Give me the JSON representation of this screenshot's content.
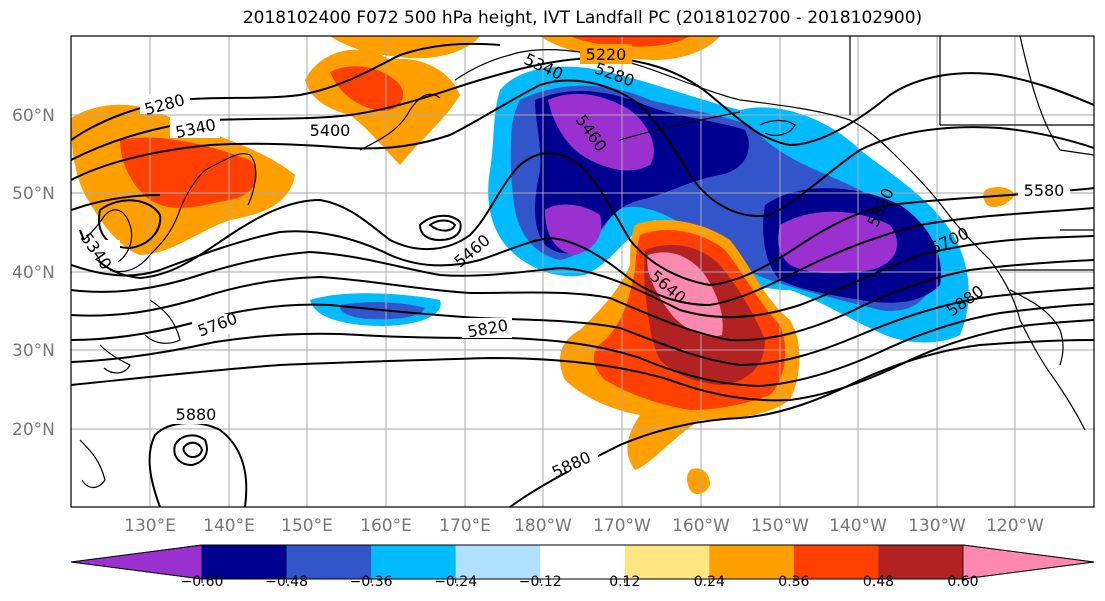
{
  "title": "2018102400 F072 500 hPa height, IVT Landfall PC (2018102700 - 2018102900)",
  "map": {
    "lat_labels": [
      "60°N",
      "50°N",
      "40°N",
      "30°N",
      "20°N"
    ],
    "lon_labels": [
      "130°E",
      "140°E",
      "150°E",
      "160°E",
      "170°E",
      "180°W",
      "170°W",
      "160°W",
      "150°W",
      "140°W",
      "130°W",
      "120°W"
    ],
    "contour_labels": [
      "5220",
      "5280",
      "5340",
      "5280",
      "5340",
      "5400",
      "5460",
      "5340",
      "5460",
      "5520",
      "5580",
      "5640",
      "5700",
      "5760",
      "5820",
      "5880",
      "5880",
      "5880"
    ],
    "colors": {
      "purple": "#9b30d0",
      "navy": "#000090",
      "royal": "#3355cc",
      "sky": "#00bbff",
      "pale_blue": "#b0e0ff",
      "yellow": "#ffe680",
      "orange": "#ffa000",
      "red_orange": "#ff4000",
      "dark_red": "#b22222",
      "pink": "#ff88b0"
    }
  },
  "colorbar": {
    "ticks": [
      "−0.60",
      "−0.48",
      "−0.36",
      "−0.24",
      "−0.12",
      "0.12",
      "0.24",
      "0.36",
      "0.48",
      "0.60"
    ],
    "levels": [
      {
        "color": "#9b30d0"
      },
      {
        "color": "#000090"
      },
      {
        "color": "#3355cc"
      },
      {
        "color": "#00bbff"
      },
      {
        "color": "#b0e0ff"
      },
      {
        "color": "#ffffff"
      },
      {
        "color": "#ffe680"
      },
      {
        "color": "#ffa000"
      },
      {
        "color": "#ff4000"
      },
      {
        "color": "#b22222"
      },
      {
        "color": "#ff88b0"
      }
    ]
  }
}
